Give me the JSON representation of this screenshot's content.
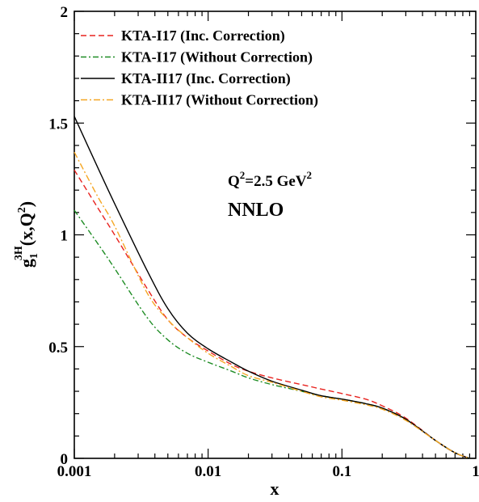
{
  "chart_data": {
    "type": "line",
    "xlabel": "x",
    "ylabel": {
      "base": "g",
      "sub": "1",
      "sup": "3",
      "sup2": "H",
      "paren": "(x,Q",
      "paren_sup": "2",
      "paren_close": ")"
    },
    "x_scale": "log",
    "xlim": [
      0.001,
      1
    ],
    "ylim": [
      0,
      2
    ],
    "x_ticks": [
      {
        "value": 0.001,
        "label": "0.001"
      },
      {
        "value": 0.01,
        "label": "0.01"
      },
      {
        "value": 0.1,
        "label": "0.1"
      },
      {
        "value": 1,
        "label": "1"
      }
    ],
    "y_ticks": [
      {
        "value": 0,
        "label": "0"
      },
      {
        "value": 0.5,
        "label": "0.5"
      },
      {
        "value": 1,
        "label": "1"
      },
      {
        "value": 1.5,
        "label": "1.5"
      },
      {
        "value": 2,
        "label": "2"
      }
    ],
    "legend_position": "top-left",
    "annotation": {
      "q_label": "Q",
      "q_sup": "2",
      "q_rest": "=2.5 GeV",
      "unit_sup": "2",
      "order": "NNLO"
    },
    "series": [
      {
        "name": "KTA-I17 (Inc. Correction)",
        "color": "#e8231f",
        "dash": "7,4",
        "x": [
          0.001,
          0.0015,
          0.002,
          0.0035,
          0.005,
          0.007,
          0.01,
          0.015,
          0.02,
          0.03,
          0.05,
          0.07,
          0.1,
          0.15,
          0.2,
          0.3,
          0.5,
          0.7,
          0.9
        ],
        "y": [
          1.29,
          1.12,
          1.0,
          0.76,
          0.62,
          0.54,
          0.48,
          0.42,
          0.39,
          0.36,
          0.33,
          0.31,
          0.29,
          0.265,
          0.235,
          0.18,
          0.08,
          0.025,
          0.0
        ]
      },
      {
        "name": "KTA-I17 (Without Correction)",
        "color": "#1e8c24",
        "dash": "7,3,2,3",
        "x": [
          0.001,
          0.0015,
          0.002,
          0.0035,
          0.005,
          0.007,
          0.01,
          0.015,
          0.02,
          0.03,
          0.05,
          0.07,
          0.1,
          0.15,
          0.2,
          0.3,
          0.5,
          0.7,
          0.9
        ],
        "y": [
          1.11,
          0.96,
          0.85,
          0.63,
          0.53,
          0.47,
          0.43,
          0.39,
          0.36,
          0.33,
          0.3,
          0.28,
          0.265,
          0.245,
          0.225,
          0.175,
          0.08,
          0.025,
          0.0
        ]
      },
      {
        "name": "KTA-II17 (Inc. Correction)",
        "color": "#000000",
        "dash": "",
        "x": [
          0.001,
          0.0015,
          0.002,
          0.0035,
          0.005,
          0.007,
          0.01,
          0.015,
          0.02,
          0.03,
          0.05,
          0.07,
          0.1,
          0.15,
          0.2,
          0.3,
          0.5,
          0.7,
          0.9
        ],
        "y": [
          1.53,
          1.3,
          1.14,
          0.84,
          0.67,
          0.56,
          0.49,
          0.43,
          0.39,
          0.345,
          0.305,
          0.28,
          0.265,
          0.245,
          0.225,
          0.175,
          0.08,
          0.025,
          0.0
        ]
      },
      {
        "name": "KTA-II17 (Without Correction)",
        "color": "#f5a623",
        "dash": "8,3,2,3",
        "x": [
          0.001,
          0.0015,
          0.002,
          0.0035,
          0.005,
          0.007,
          0.01,
          0.015,
          0.02,
          0.03,
          0.05,
          0.07,
          0.1,
          0.15,
          0.2,
          0.3,
          0.5,
          0.7,
          0.9
        ],
        "y": [
          1.37,
          1.17,
          1.04,
          0.74,
          0.62,
          0.54,
          0.47,
          0.41,
          0.37,
          0.34,
          0.3,
          0.275,
          0.26,
          0.24,
          0.22,
          0.17,
          0.08,
          0.025,
          0.0
        ]
      }
    ]
  }
}
